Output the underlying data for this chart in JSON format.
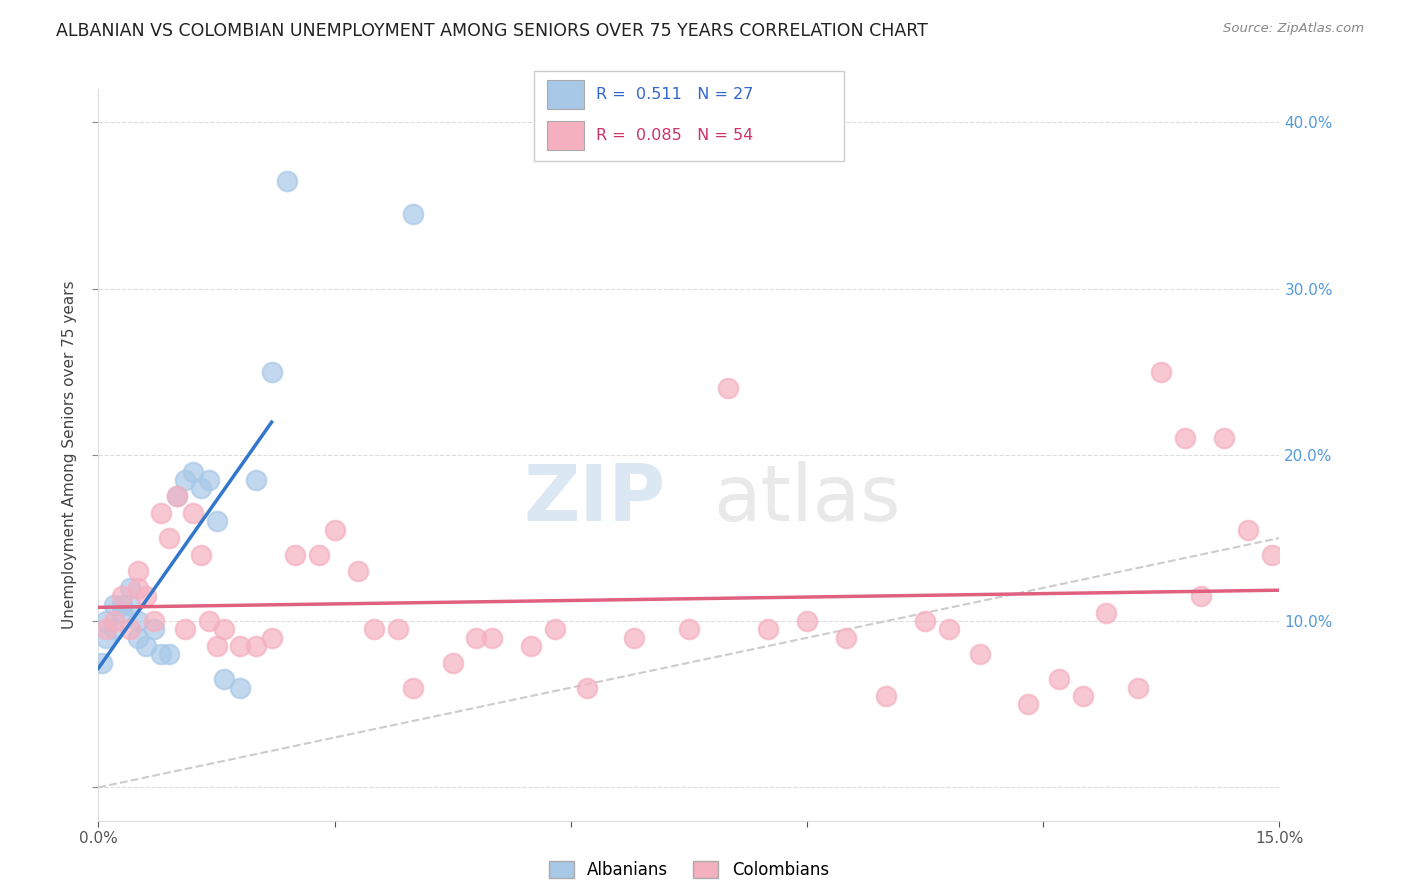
{
  "title": "ALBANIAN VS COLOMBIAN UNEMPLOYMENT AMONG SENIORS OVER 75 YEARS CORRELATION CHART",
  "source": "Source: ZipAtlas.com",
  "ylabel": "Unemployment Among Seniors over 75 years",
  "xlim": [
    0.0,
    0.15
  ],
  "ylim": [
    -0.02,
    0.42
  ],
  "albanian_R": 0.511,
  "albanian_N": 27,
  "colombian_R": 0.085,
  "colombian_N": 54,
  "albanian_color": "#a8c8e8",
  "colombian_color": "#f5b0c0",
  "albanian_line_color": "#3377cc",
  "colombian_line_color": "#e06080",
  "diagonal_color": "#cccccc",
  "albanian_x": [
    0.0005,
    0.001,
    0.001,
    0.002,
    0.002,
    0.003,
    0.003,
    0.004,
    0.004,
    0.005,
    0.005,
    0.006,
    0.007,
    0.008,
    0.009,
    0.01,
    0.011,
    0.012,
    0.013,
    0.014,
    0.015,
    0.016,
    0.018,
    0.02,
    0.022,
    0.024,
    0.04
  ],
  "albanian_y": [
    0.075,
    0.09,
    0.1,
    0.11,
    0.095,
    0.11,
    0.105,
    0.12,
    0.11,
    0.1,
    0.09,
    0.085,
    0.095,
    0.08,
    0.08,
    0.175,
    0.185,
    0.19,
    0.18,
    0.185,
    0.16,
    0.065,
    0.06,
    0.185,
    0.25,
    0.365,
    0.345
  ],
  "colombian_x": [
    0.001,
    0.002,
    0.003,
    0.004,
    0.005,
    0.005,
    0.006,
    0.007,
    0.008,
    0.009,
    0.01,
    0.011,
    0.012,
    0.013,
    0.014,
    0.015,
    0.016,
    0.018,
    0.02,
    0.022,
    0.025,
    0.028,
    0.03,
    0.033,
    0.035,
    0.038,
    0.04,
    0.045,
    0.048,
    0.05,
    0.055,
    0.058,
    0.062,
    0.068,
    0.075,
    0.08,
    0.085,
    0.09,
    0.095,
    0.1,
    0.105,
    0.108,
    0.112,
    0.118,
    0.122,
    0.125,
    0.128,
    0.132,
    0.135,
    0.138,
    0.14,
    0.143,
    0.146,
    0.149
  ],
  "colombian_y": [
    0.095,
    0.1,
    0.115,
    0.095,
    0.12,
    0.13,
    0.115,
    0.1,
    0.165,
    0.15,
    0.175,
    0.095,
    0.165,
    0.14,
    0.1,
    0.085,
    0.095,
    0.085,
    0.085,
    0.09,
    0.14,
    0.14,
    0.155,
    0.13,
    0.095,
    0.095,
    0.06,
    0.075,
    0.09,
    0.09,
    0.085,
    0.095,
    0.06,
    0.09,
    0.095,
    0.24,
    0.095,
    0.1,
    0.09,
    0.055,
    0.1,
    0.095,
    0.08,
    0.05,
    0.065,
    0.055,
    0.105,
    0.06,
    0.25,
    0.21,
    0.115,
    0.21,
    0.155,
    0.14
  ]
}
